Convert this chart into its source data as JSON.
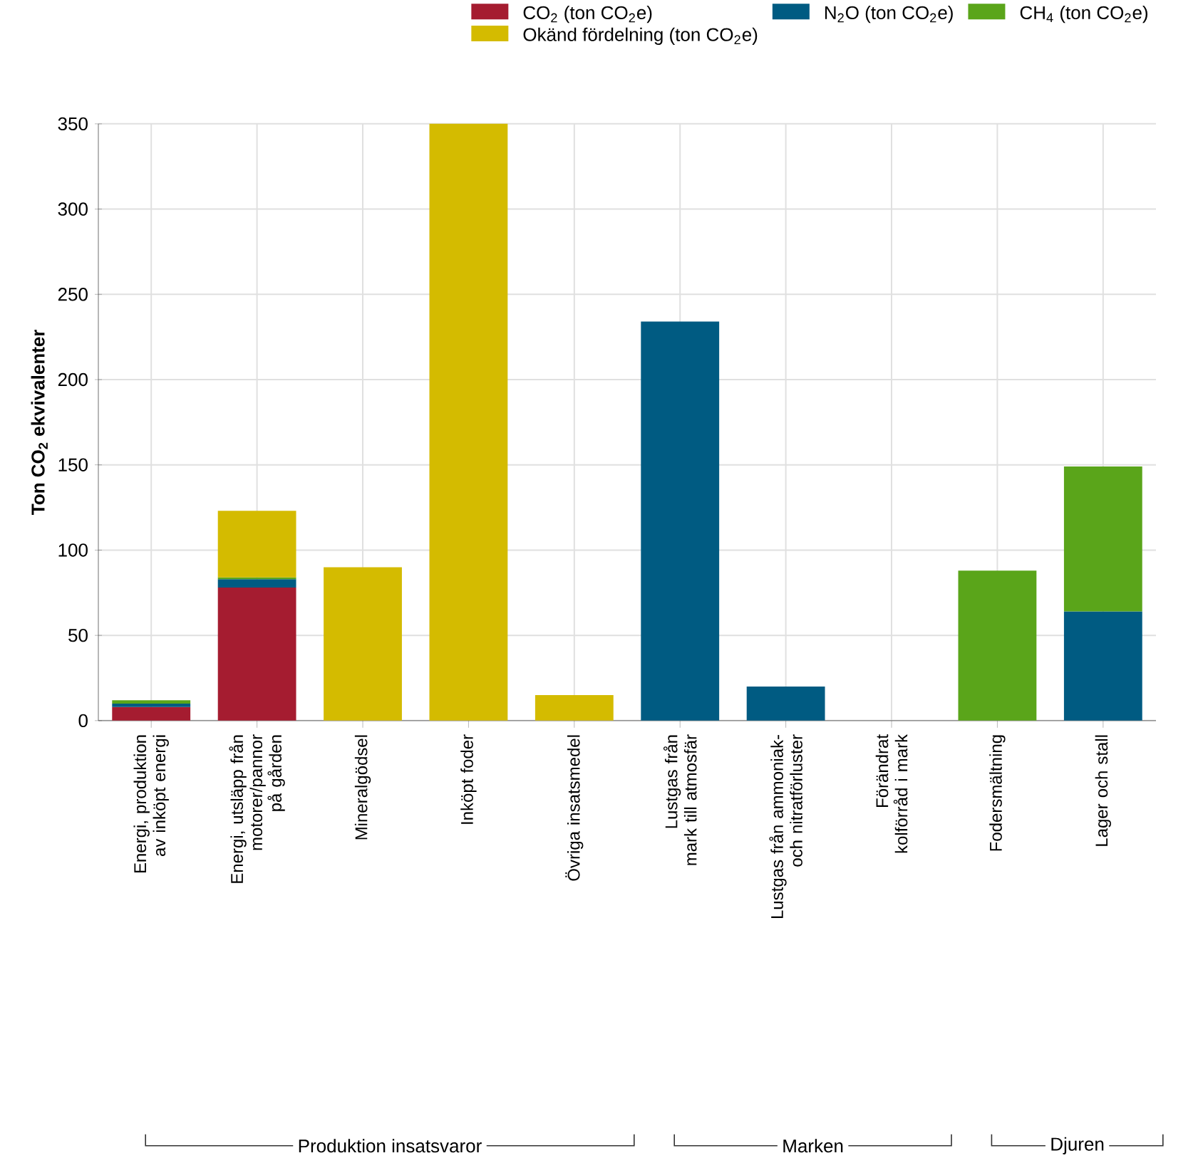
{
  "chart_data": {
    "type": "bar",
    "stacked": true,
    "ylabel": "Ton  CO$_{2}$ ekvivalenter",
    "categories": [
      "Energi, produktion av inköpt energi",
      "Energi, utsläpp från motorer/pannor på gården",
      "Mineralgödsel",
      "Inköpt foder",
      "Övriga insatsmedel",
      "Lustgas från mark till atmosfär",
      "Lustgas från ammoniak- och nitratförluster",
      "Förändrat kolförråd i mark",
      "Fodersmältning",
      "Lager och stall"
    ],
    "series": [
      {
        "name": "CO$_{2}$ (ton CO$_{2}$e)",
        "color": "#a51c30",
        "values": [
          8,
          78,
          null,
          null,
          null,
          null,
          null,
          null,
          null,
          null
        ]
      },
      {
        "name": "N$_{2}$O (ton CO$_{2}$e)",
        "color": "#005b82",
        "values": [
          2,
          5,
          null,
          null,
          null,
          234,
          20,
          null,
          null,
          64
        ]
      },
      {
        "name": "CH$_{4}$ (ton CO$_{2}$e)",
        "color": "#5aa51a",
        "values": [
          2,
          1,
          null,
          null,
          null,
          null,
          null,
          null,
          88,
          85
        ]
      },
      {
        "name": "Okänd fördelning (ton CO$_{2}$e)",
        "color": "#d4bb00",
        "values": [
          null,
          39,
          90,
          350,
          15,
          null,
          null,
          null,
          null,
          null
        ]
      }
    ],
    "ylim": [
      0,
      350
    ],
    "yticks": [
      0,
      50,
      100,
      150,
      200,
      250,
      300,
      350
    ],
    "grid": true,
    "legend": "top right",
    "annotations": [
      "Produktion insatsvaror",
      "Marken",
      "Djuren"
    ]
  }
}
